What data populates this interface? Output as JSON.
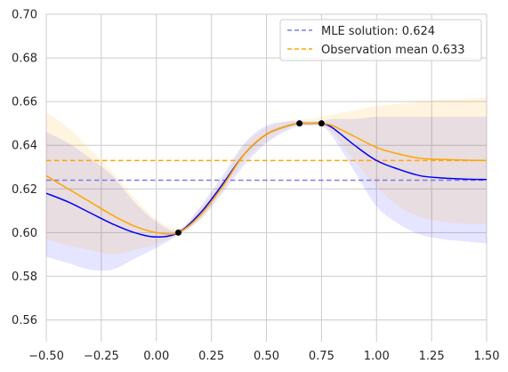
{
  "chart_data": {
    "type": "line",
    "title": "",
    "xlabel": "",
    "ylabel": "",
    "xlim": [
      -0.5,
      1.5
    ],
    "ylim": [
      0.55,
      0.7
    ],
    "xticks": [
      -0.5,
      -0.25,
      0.0,
      0.25,
      0.5,
      0.75,
      1.0,
      1.25,
      1.5
    ],
    "xtick_labels": [
      "−0.50",
      "−0.25",
      "0.00",
      "0.25",
      "0.50",
      "0.75",
      "1.00",
      "1.25",
      "1.50"
    ],
    "yticks": [
      0.56,
      0.58,
      0.6,
      0.62,
      0.64,
      0.66,
      0.68,
      0.7
    ],
    "ytick_labels": [
      "0.56",
      "0.58",
      "0.60",
      "0.62",
      "0.64",
      "0.66",
      "0.68",
      "0.70"
    ],
    "grid": true,
    "legend_position": "top-right",
    "legend": [
      {
        "label": "MLE solution: 0.624",
        "color": "#7b7bf0",
        "style": "dashed"
      },
      {
        "label": "Observation mean 0.633",
        "color": "#ffa500",
        "style": "dashed"
      }
    ],
    "hlines": [
      {
        "y": 0.624,
        "color": "#7b7bf0"
      },
      {
        "y": 0.633,
        "color": "#ffa500"
      }
    ],
    "observations": {
      "x": [
        0.1,
        0.65,
        0.75
      ],
      "y": [
        0.6,
        0.65,
        0.65
      ],
      "color": "#000000"
    },
    "series": [
      {
        "color": "#0000ff",
        "band_color": "#0000ff",
        "x": [
          -0.5,
          -0.4,
          -0.3,
          -0.2,
          -0.1,
          0.0,
          0.1,
          0.2,
          0.3,
          0.4,
          0.5,
          0.6,
          0.65,
          0.7,
          0.75,
          0.8,
          0.9,
          1.0,
          1.1,
          1.2,
          1.3,
          1.4,
          1.5
        ],
        "y": [
          0.618,
          0.614,
          0.609,
          0.604,
          0.6,
          0.598,
          0.6,
          0.609,
          0.622,
          0.636,
          0.645,
          0.649,
          0.65,
          0.65,
          0.65,
          0.648,
          0.64,
          0.633,
          0.629,
          0.626,
          0.625,
          0.6245,
          0.6243
        ],
        "lower": [
          0.589,
          0.586,
          0.583,
          0.583,
          0.588,
          0.593,
          0.599,
          0.606,
          0.618,
          0.631,
          0.641,
          0.647,
          0.649,
          0.649,
          0.649,
          0.644,
          0.628,
          0.612,
          0.604,
          0.599,
          0.597,
          0.596,
          0.595
        ],
        "upper": [
          0.646,
          0.641,
          0.634,
          0.626,
          0.614,
          0.605,
          0.601,
          0.612,
          0.626,
          0.641,
          0.649,
          0.651,
          0.651,
          0.651,
          0.651,
          0.652,
          0.652,
          0.653,
          0.653,
          0.653,
          0.653,
          0.653,
          0.653
        ]
      },
      {
        "color": "#ffa500",
        "band_color": "#ffa500",
        "x": [
          -0.5,
          -0.4,
          -0.3,
          -0.2,
          -0.1,
          0.0,
          0.1,
          0.2,
          0.3,
          0.4,
          0.5,
          0.6,
          0.65,
          0.7,
          0.75,
          0.8,
          0.9,
          1.0,
          1.1,
          1.2,
          1.3,
          1.4,
          1.5
        ],
        "y": [
          0.626,
          0.62,
          0.614,
          0.608,
          0.603,
          0.6,
          0.6,
          0.608,
          0.621,
          0.636,
          0.645,
          0.649,
          0.65,
          0.65,
          0.65,
          0.649,
          0.644,
          0.639,
          0.636,
          0.634,
          0.6335,
          0.6332,
          0.633
        ],
        "lower": [
          0.597,
          0.594,
          0.592,
          0.59,
          0.592,
          0.595,
          0.599,
          0.606,
          0.619,
          0.633,
          0.642,
          0.648,
          0.649,
          0.649,
          0.649,
          0.646,
          0.633,
          0.621,
          0.612,
          0.607,
          0.605,
          0.604,
          0.604
        ],
        "upper": [
          0.655,
          0.648,
          0.638,
          0.628,
          0.616,
          0.606,
          0.602,
          0.611,
          0.624,
          0.64,
          0.648,
          0.651,
          0.652,
          0.652,
          0.653,
          0.654,
          0.656,
          0.658,
          0.659,
          0.66,
          0.661,
          0.661,
          0.662
        ]
      }
    ]
  }
}
